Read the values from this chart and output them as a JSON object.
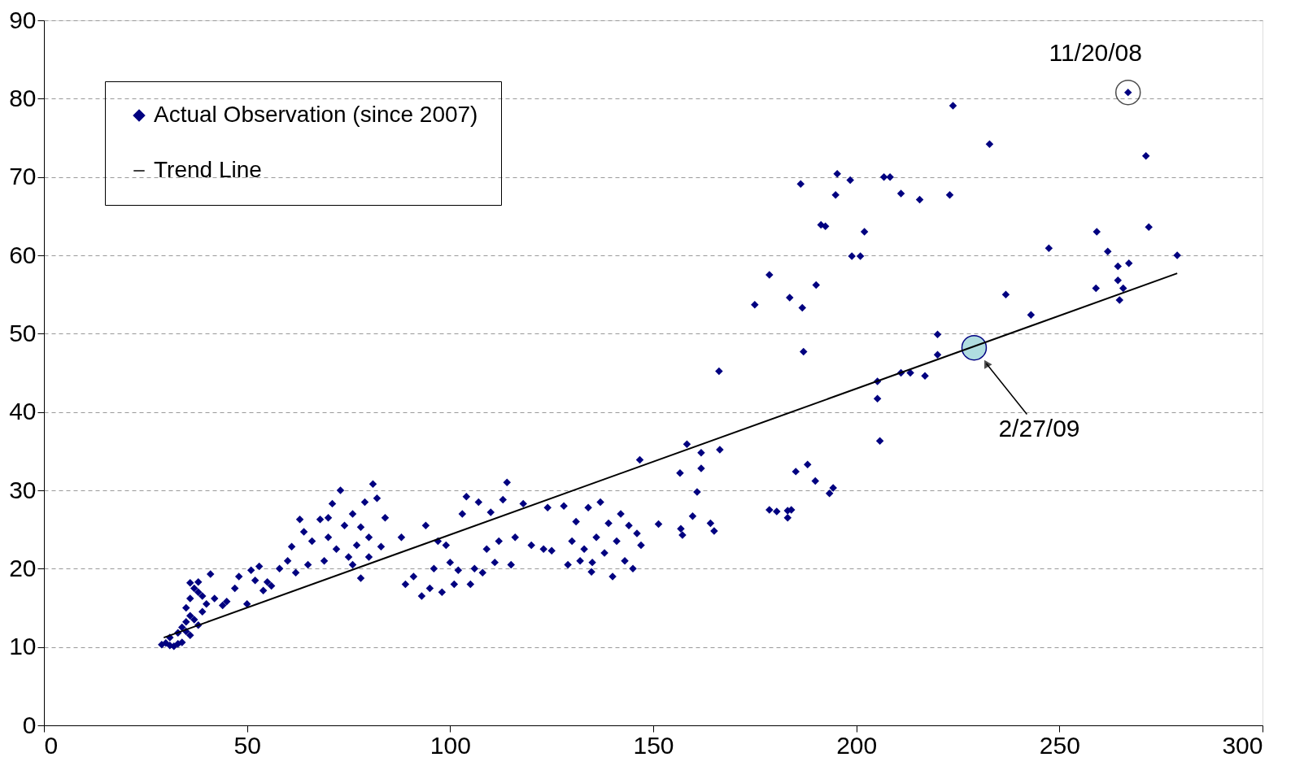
{
  "chart_data": {
    "type": "scatter",
    "xlim": [
      0,
      300
    ],
    "xticks": [
      0,
      50,
      100,
      150,
      200,
      250,
      300
    ],
    "ylim": [
      0,
      90
    ],
    "yticks": [
      0,
      10,
      20,
      30,
      40,
      50,
      60,
      70,
      80,
      90
    ],
    "grid": "y",
    "legend": "top left",
    "annotations": [
      {
        "text": "11/20/08",
        "x": 266.9,
        "y": 80.8
      },
      {
        "text": "2/27/09",
        "x": 229,
        "y": 48.2
      }
    ],
    "series": [
      {
        "name": "Actual Observation (since 2007)",
        "color": "#000080",
        "marker": "diamond",
        "x": [
          29,
          30,
          31,
          32,
          33,
          34,
          31,
          33,
          34,
          35,
          36,
          35,
          36,
          37,
          38,
          36,
          37,
          38,
          39,
          40,
          41,
          42,
          44,
          45,
          35,
          36,
          38,
          39,
          47,
          48,
          50,
          51,
          52,
          53,
          54,
          55,
          56,
          58,
          60,
          61,
          62,
          63,
          64,
          65,
          66,
          68,
          69,
          70,
          71,
          72,
          73,
          74,
          75,
          76,
          77,
          78,
          79,
          80,
          81,
          82,
          83,
          84,
          76,
          78,
          80,
          70,
          88,
          89,
          91,
          93,
          94,
          95,
          96,
          97,
          98,
          99,
          100,
          101,
          102,
          103,
          104,
          105,
          106,
          107,
          108,
          109,
          110,
          111,
          112,
          113,
          114,
          115,
          116,
          118,
          120,
          123,
          124,
          125,
          128,
          129,
          130,
          131,
          132,
          133,
          134,
          135,
          136,
          137,
          138,
          139,
          140,
          141,
          142,
          143,
          144,
          145,
          146,
          147,
          134.8,
          151.3,
          156.6,
          156.8,
          157.2,
          158.3,
          159.7,
          160.8,
          161.8,
          161.8,
          164.1,
          165,
          166.2,
          166.4,
          146.7,
          175,
          178.6,
          178.6,
          180.4,
          183.1,
          183.1,
          183.6,
          184,
          185.1,
          186.3,
          186.7,
          187,
          188,
          189.9,
          190.1,
          191.3,
          192.4,
          193.4,
          194.3,
          194.9,
          195.3,
          198.5,
          198.9,
          201,
          202,
          205.2,
          205.2,
          205.8,
          206.8,
          208.3,
          211,
          211,
          213.3,
          215.6,
          216.9,
          220,
          220,
          223,
          223.8,
          232.8,
          236.8,
          243,
          247.4,
          259,
          259.2,
          261.9,
          264.4,
          264.4,
          264.8,
          265.7,
          266.9,
          267.1,
          271.3,
          272,
          279
        ],
        "values": [
          10.3,
          10.5,
          10.2,
          10.1,
          10.4,
          10.6,
          11.2,
          11.8,
          12.5,
          13.2,
          14.0,
          15.0,
          16.2,
          17.5,
          18.3,
          18.2,
          13.5,
          12.8,
          14.5,
          15.5,
          19.3,
          16.2,
          15.3,
          15.8,
          12.0,
          11.5,
          17.0,
          16.5,
          17.5,
          19.0,
          15.5,
          19.8,
          18.5,
          20.3,
          17.2,
          18.3,
          17.8,
          20.0,
          21.0,
          22.8,
          19.5,
          26.3,
          24.7,
          20.5,
          23.5,
          26.3,
          21.0,
          24.0,
          28.3,
          22.5,
          30.0,
          25.5,
          21.5,
          27.0,
          23.0,
          18.8,
          28.5,
          24.0,
          30.8,
          29.0,
          22.8,
          26.5,
          20.5,
          25.3,
          21.5,
          26.5,
          24.0,
          18.0,
          19.0,
          16.5,
          25.5,
          17.5,
          20.0,
          23.5,
          17.0,
          23.0,
          20.8,
          18.0,
          19.8,
          27.0,
          29.2,
          18.0,
          20.0,
          28.5,
          19.5,
          22.5,
          27.2,
          20.8,
          23.5,
          28.8,
          31.0,
          20.5,
          24.0,
          28.3,
          23.0,
          22.5,
          27.8,
          22.3,
          28.0,
          20.5,
          23.5,
          26.0,
          21.0,
          22.5,
          27.8,
          20.8,
          24.0,
          28.5,
          22.0,
          25.8,
          19.0,
          23.5,
          27.0,
          21.0,
          25.5,
          20.0,
          24.5,
          23.0,
          19.6,
          25.7,
          32.2,
          25.1,
          24.3,
          35.9,
          26.7,
          29.8,
          34.8,
          32.8,
          25.8,
          24.8,
          45.2,
          35.2,
          33.9,
          53.7,
          57.5,
          27.5,
          27.3,
          27.4,
          26.5,
          54.6,
          27.5,
          32.4,
          69.1,
          53.3,
          47.7,
          33.3,
          31.2,
          56.2,
          63.9,
          63.7,
          29.6,
          30.3,
          67.7,
          70.4,
          69.6,
          59.9,
          59.9,
          63.0,
          43.9,
          41.7,
          36.3,
          70.0,
          70.0,
          67.9,
          45.0,
          45.0,
          67.1,
          44.6,
          49.9,
          47.3,
          67.7,
          79.1,
          74.2,
          55.0,
          52.4,
          60.9,
          55.8,
          63.0,
          60.5,
          58.6,
          56.8,
          54.3,
          55.8,
          80.8,
          59.0,
          72.7,
          63.6,
          60.0
        ]
      },
      {
        "color": "#b0dde0",
        "x": [
          229
        ],
        "values": [
          48.2
        ],
        "marker": "circle"
      },
      {
        "name": "Trend Line",
        "type": "line",
        "color": "#000000",
        "marker": "none",
        "line_style": "solid",
        "x": [
          29.5,
          279
        ],
        "values": [
          11.2,
          57.7
        ]
      }
    ]
  }
}
